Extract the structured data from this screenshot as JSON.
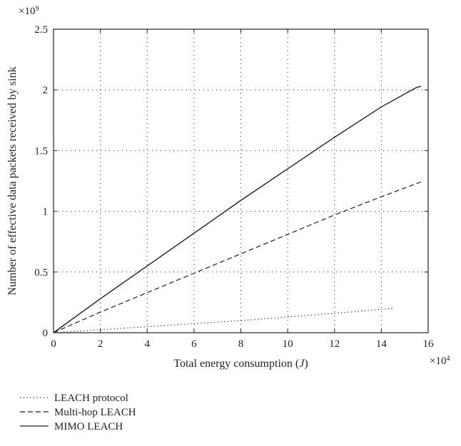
{
  "chart_data": {
    "type": "line",
    "title": "",
    "xlabel": "Total energy consumption (J)",
    "xlabel_parts": {
      "text": "Total energy consumption (",
      "var": "J",
      "close": ")"
    },
    "ylabel": "Number of effective data packets received by sink",
    "x_multiplier": "×10^4",
    "x_multiplier_parts": {
      "base": "×10",
      "exp": "4"
    },
    "y_multiplier": "×10^9",
    "y_multiplier_parts": {
      "base": "×10",
      "exp": "9"
    },
    "xlim": [
      0,
      16
    ],
    "ylim": [
      0,
      2.5
    ],
    "x_ticks": [
      "0",
      "2",
      "4",
      "6",
      "8",
      "10",
      "12",
      "14",
      "16"
    ],
    "y_ticks": [
      "0",
      "0.5",
      "1",
      "1.5",
      "2",
      "2.5"
    ],
    "x_tick_values": [
      0,
      2,
      4,
      6,
      8,
      10,
      12,
      14,
      16
    ],
    "y_tick_values": [
      0,
      0.5,
      1,
      1.5,
      2,
      2.5
    ],
    "grid": true,
    "legend_position": "bottom-left, below plot",
    "series": [
      {
        "name": "LEACH protocol",
        "style": "dotted",
        "x": [
          0,
          2,
          4,
          6,
          8,
          10,
          12,
          14.5
        ],
        "y": [
          0,
          0.025,
          0.05,
          0.075,
          0.1,
          0.13,
          0.16,
          0.2
        ]
      },
      {
        "name": "Multi-hop LEACH",
        "style": "dashed",
        "x": [
          0,
          2,
          4,
          6,
          8,
          10,
          12,
          14,
          15.8
        ],
        "y": [
          0,
          0.17,
          0.33,
          0.49,
          0.65,
          0.81,
          0.97,
          1.12,
          1.25
        ]
      },
      {
        "name": "MIMO LEACH",
        "style": "solid",
        "x": [
          0,
          2,
          4,
          6,
          8,
          10,
          12,
          14,
          15.5,
          15.7
        ],
        "y": [
          0,
          0.28,
          0.55,
          0.82,
          1.09,
          1.35,
          1.61,
          1.86,
          2.02,
          2.03
        ]
      }
    ]
  }
}
